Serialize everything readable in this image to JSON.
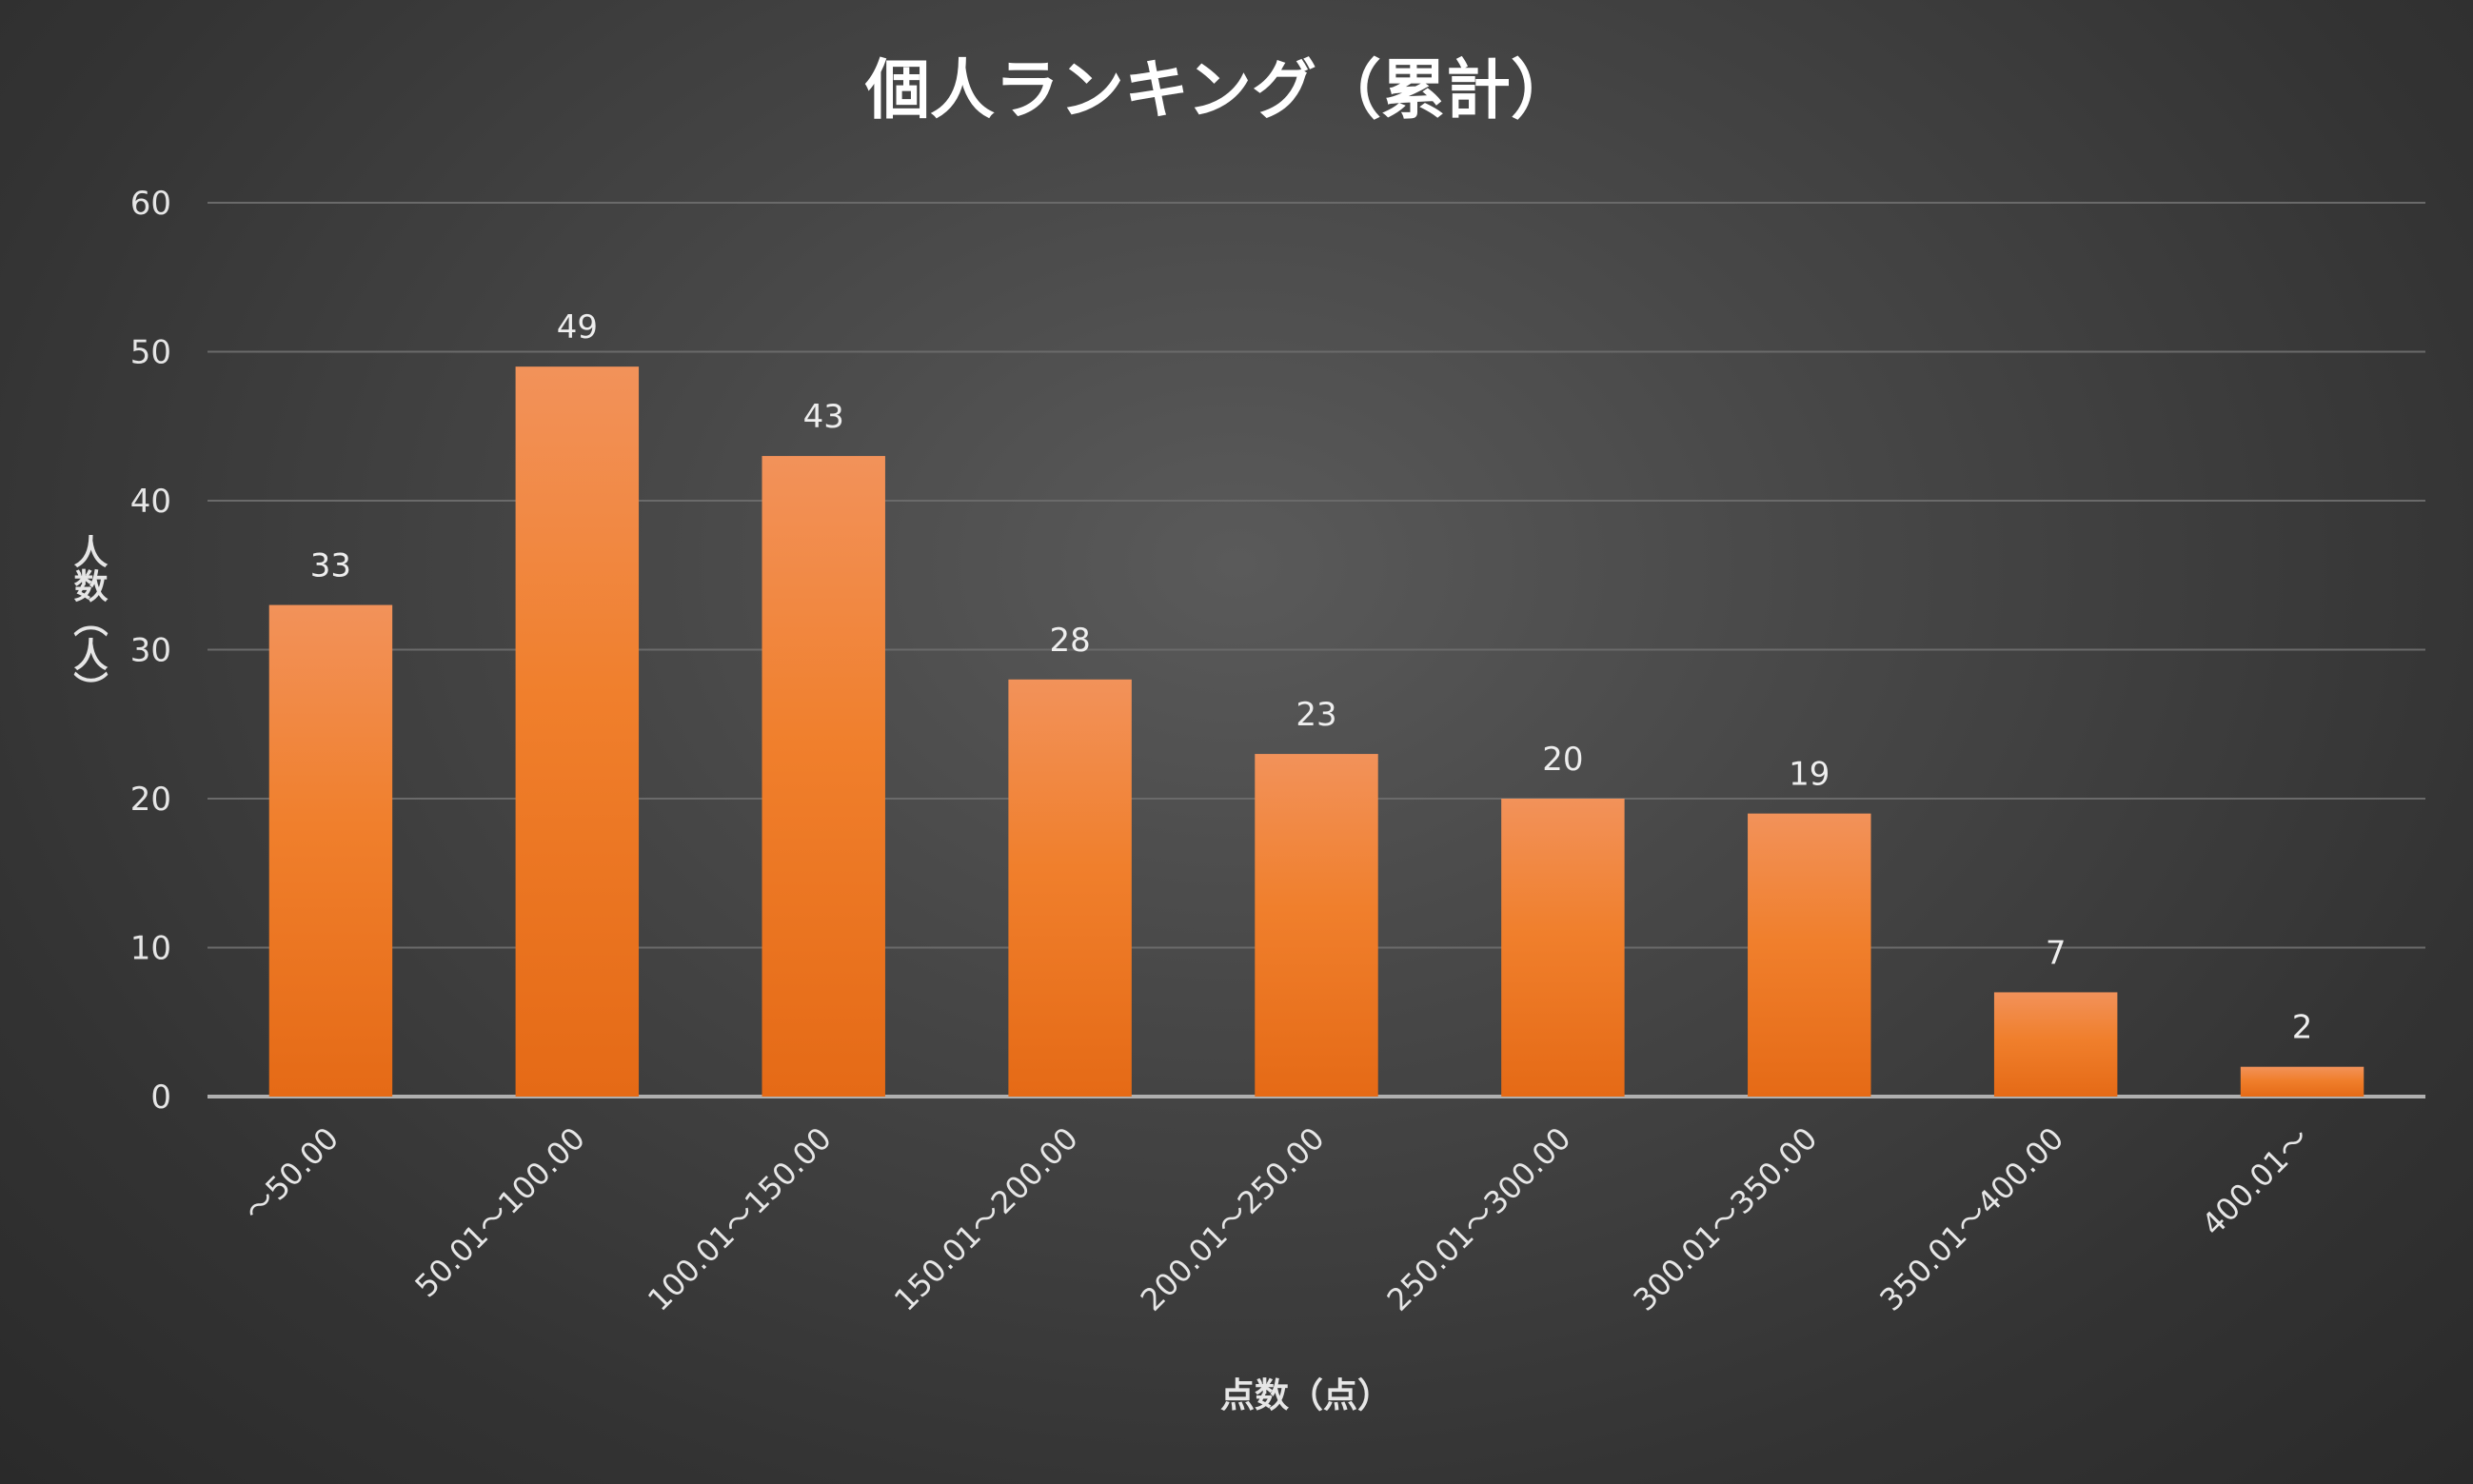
{
  "chart_data": {
    "type": "bar",
    "title": "個人ランキング（累計）",
    "xlabel": "点数（点）",
    "ylabel": "人数（人）",
    "ylim": [
      0,
      60
    ],
    "yticks": [
      0,
      10,
      20,
      30,
      40,
      50,
      60
    ],
    "ytick_labels": [
      "0",
      "10",
      "20",
      "30",
      "40",
      "50",
      "60"
    ],
    "categories": [
      "～50.00",
      "50.01～100.00",
      "100.01～150.00",
      "150.01～200.00",
      "200.01～250.00",
      "250.01～300.00",
      "300.01～350.00",
      "350.01～400.00",
      "400.01～"
    ],
    "values": [
      33,
      49,
      43,
      28,
      23,
      20,
      19,
      7,
      2
    ],
    "data_labels": [
      "33",
      "49",
      "43",
      "28",
      "23",
      "20",
      "19",
      "7",
      "2"
    ],
    "grid": true,
    "legend": "none",
    "colors": {
      "bar_top": "#f2925a",
      "bar_bottom": "#e56a16",
      "bar_mid": "#f07f2c"
    }
  }
}
